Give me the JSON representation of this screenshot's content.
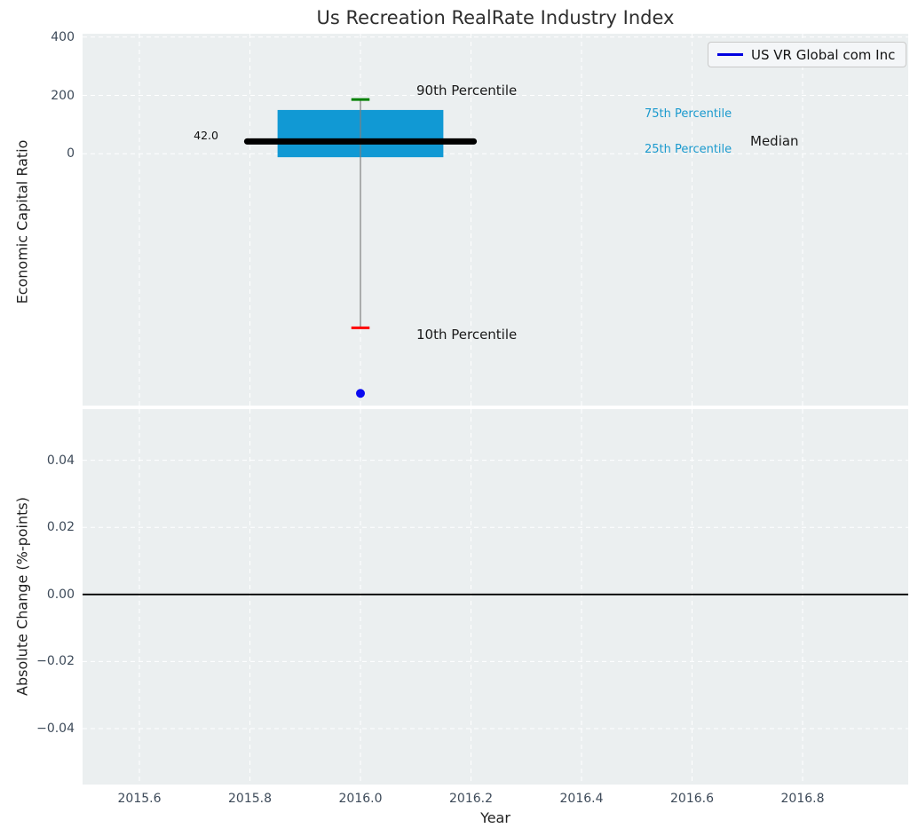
{
  "title": "Us Recreation RealRate Industry Index",
  "legend": {
    "label": "US VR Global com Inc"
  },
  "top_plot": {
    "ylabel": "Economic Capital Ratio",
    "annotations": {
      "p90": "90th Percentile",
      "p10": "10th Percentile",
      "p75": "75th Percentile",
      "p25": "25th Percentile",
      "median": "Median"
    }
  },
  "bottom_plot": {
    "ylabel": "Absolute Change (%-points)",
    "xlabel": "Year"
  },
  "colors": {
    "box_fill": "#1199d4",
    "median_line": "#000000",
    "whisker": "#7f7f7f",
    "cap_90": "#008000",
    "cap_10": "#ff0000",
    "company_point": "#0a0af0",
    "legend_line": "#0000e0",
    "percentile_label": "#1b9ace",
    "axes_bg": "#ebeff0",
    "grid": "#ffffff",
    "tick_label": "#3d4a59",
    "zero_line": "#000000"
  },
  "chart_data": [
    {
      "type": "box",
      "title": "Us Recreation RealRate Industry Index",
      "xlabel": "",
      "ylabel": "Economic Capital Ratio",
      "xlim": [
        2015.5,
        2016.99
      ],
      "ylim": [
        -870,
        412
      ],
      "grid": true,
      "legend_position": "upper right",
      "yticks": [
        {
          "value": 400,
          "label": "400"
        },
        {
          "value": 200,
          "label": "200"
        },
        {
          "value": 0,
          "label": "0"
        }
      ],
      "boxes": [
        {
          "x": 2016.0,
          "p90": 186,
          "p75": 150,
          "median": 42.0,
          "p25": -12,
          "p10": -597,
          "median_label": "42.0"
        }
      ],
      "series": [
        {
          "name": "US VR Global com Inc",
          "type": "scatter",
          "x": [
            2016.0
          ],
          "y": [
            -822
          ]
        }
      ]
    },
    {
      "type": "line",
      "title": "",
      "xlabel": "Year",
      "ylabel": "Absolute Change (%-points)",
      "xlim": [
        2015.5,
        2016.99
      ],
      "ylim": [
        -0.0565,
        0.0555
      ],
      "grid": true,
      "zero_line": 0.0,
      "yticks": [
        {
          "value": 0.04,
          "label": "0.04"
        },
        {
          "value": 0.02,
          "label": "0.02"
        },
        {
          "value": 0.0,
          "label": "0.00"
        },
        {
          "value": -0.02,
          "label": "−0.02"
        },
        {
          "value": -0.04,
          "label": "−0.04"
        }
      ],
      "xticks": [
        {
          "value": 2015.6,
          "label": "2015.6"
        },
        {
          "value": 2015.8,
          "label": "2015.8"
        },
        {
          "value": 2016.0,
          "label": "2016.0"
        },
        {
          "value": 2016.2,
          "label": "2016.2"
        },
        {
          "value": 2016.4,
          "label": "2016.4"
        },
        {
          "value": 2016.6,
          "label": "2016.6"
        },
        {
          "value": 2016.8,
          "label": "2016.8"
        }
      ],
      "series": []
    }
  ]
}
